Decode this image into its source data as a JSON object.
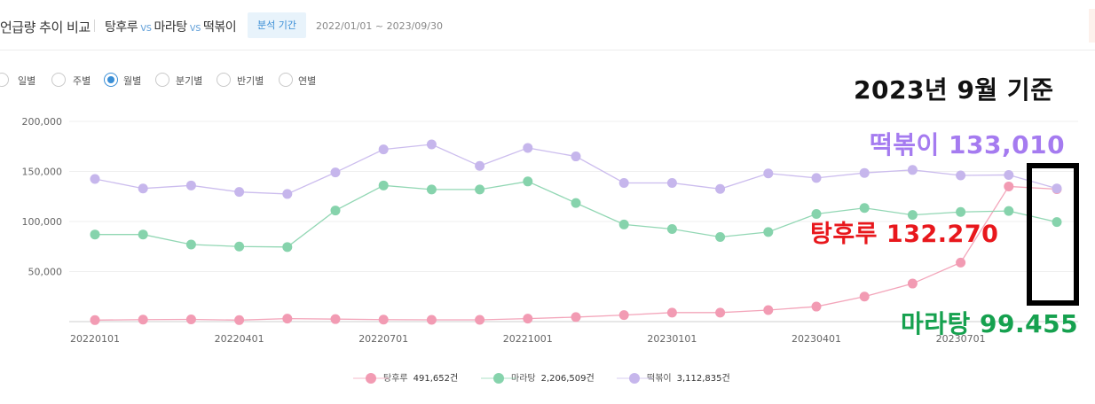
{
  "header": {
    "title": "언급량 추이 비교",
    "terms": [
      "탕후루",
      "마라탕",
      "떡볶이"
    ],
    "vs_label": "vs",
    "period_badge": "분석 기간",
    "date_range": "2022/01/01 ~ 2023/09/30"
  },
  "period_options": {
    "items": [
      "일별",
      "주별",
      "월별",
      "분기별",
      "반기별",
      "연별"
    ],
    "selected": "월별"
  },
  "chart_data": {
    "type": "line",
    "x": [
      "20220101",
      "20220201",
      "20220301",
      "20220401",
      "20220501",
      "20220601",
      "20220701",
      "20220801",
      "20220901",
      "20221001",
      "20221101",
      "20221201",
      "20230101",
      "20230201",
      "20230301",
      "20230401",
      "20230501",
      "20230601",
      "20230701",
      "20230801",
      "20230901"
    ],
    "x_tick_labels": [
      "20220101",
      "20220401",
      "20220701",
      "20221001",
      "20230101",
      "20230401",
      "20230701"
    ],
    "y_ticks": [
      "200,000",
      "150,000",
      "100,000",
      "50,000"
    ],
    "y_tick_values": [
      200000,
      150000,
      100000,
      50000
    ],
    "ylim": [
      0,
      200000
    ],
    "grid": "horizontal",
    "legend_position": "bottom",
    "series": [
      {
        "name": "탕후루",
        "total": "491,652건",
        "color": "#f29bb3",
        "values": [
          1500,
          2000,
          2200,
          1500,
          3000,
          2500,
          2000,
          1800,
          1800,
          3000,
          4500,
          6500,
          9000,
          9000,
          11500,
          15000,
          25000,
          38000,
          59000,
          135000,
          132270
        ]
      },
      {
        "name": "마라탕",
        "total": "2,206,509건",
        "color": "#86d3ac",
        "values": [
          87000,
          87000,
          77000,
          75000,
          74500,
          111000,
          136000,
          132000,
          132000,
          140000,
          118500,
          97000,
          92500,
          84500,
          89500,
          107500,
          113500,
          106500,
          109500,
          110500,
          99455
        ]
      },
      {
        "name": "떡볶이",
        "total": "3,112,835건",
        "color": "#c6b6ec",
        "values": [
          142500,
          133000,
          136000,
          129500,
          127500,
          149000,
          172000,
          177000,
          155500,
          173500,
          165000,
          138500,
          138500,
          132500,
          148000,
          143500,
          148500,
          151500,
          146000,
          146500,
          133010
        ]
      }
    ]
  },
  "annotations": {
    "date": "2023년 9월 기준",
    "tteokbokki": "떡볶이 133,010",
    "tanghulu": "탕후루 132.270",
    "malatang": "마라탕 99.455"
  },
  "colors": {
    "accent": "#3a8ed6",
    "tanghulu": "#f29bb3",
    "malatang": "#86d3ac",
    "tteokbokki": "#c6b6ec",
    "ann_tteokbokki": "#a57bf0",
    "ann_tanghulu": "#e8171c",
    "ann_malatang": "#16a14f"
  }
}
